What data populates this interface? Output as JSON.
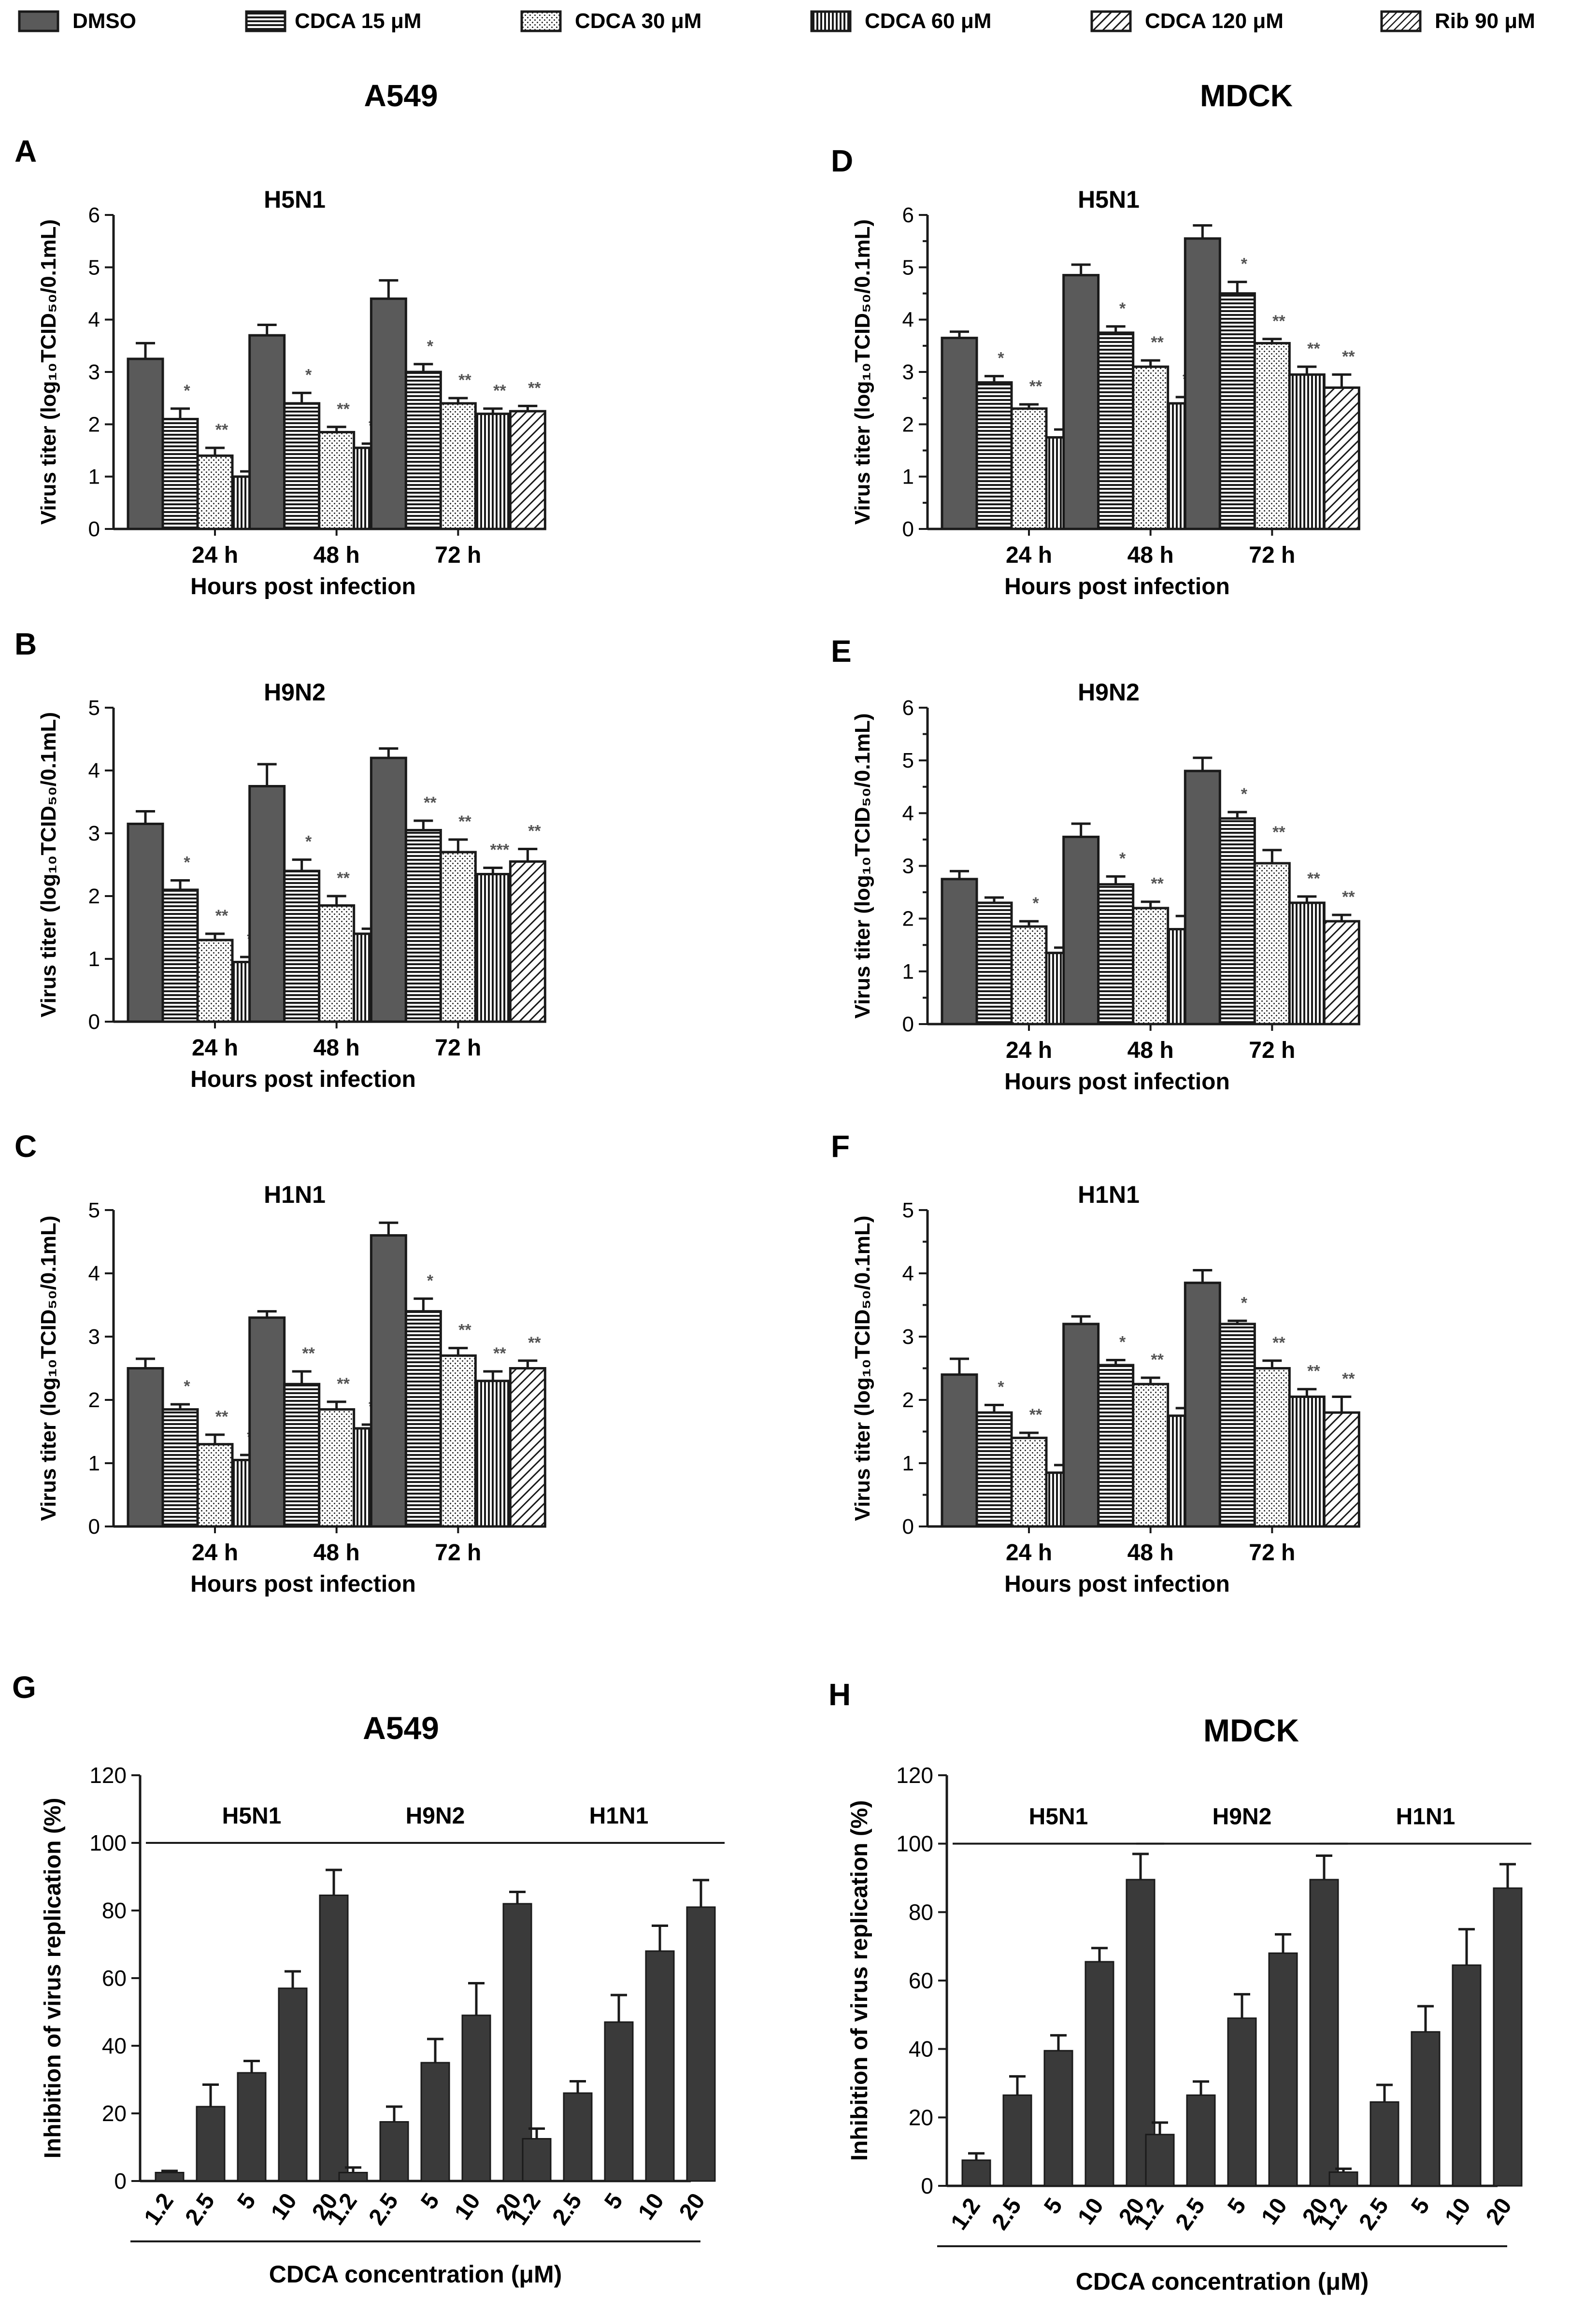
{
  "legend": [
    {
      "label": "DMSO",
      "pattern": "solid"
    },
    {
      "label": "CDCA 15 μM",
      "pattern": "hlines"
    },
    {
      "label": "CDCA 30 μM",
      "pattern": "dots"
    },
    {
      "label": "CDCA 60 μM",
      "pattern": "vlines"
    },
    {
      "label": "CDCA 120 μM",
      "pattern": "diag"
    },
    {
      "label": "Rib 90 μM",
      "pattern": "diag2"
    }
  ],
  "column_titles": {
    "left": "A549",
    "right": "MDCK"
  },
  "colors": {
    "bar": "#5a5a5a",
    "dark_bar": "#3a3a3a",
    "ink": "#1a1a1a"
  },
  "chart_data": [
    {
      "panel": "A",
      "type": "bar",
      "title": "H5N1",
      "xlabel": "Hours post infection",
      "ylabel": "Virus titer (log₁₀TCID₅₀/0.1mL)",
      "ylim": [
        0,
        6
      ],
      "yticks": [
        0,
        1,
        2,
        3,
        4,
        5,
        6
      ],
      "categories": [
        "24 h",
        "48 h",
        "72 h"
      ],
      "series": [
        {
          "values": [
            3.25,
            3.7,
            4.4
          ],
          "errors": [
            0.3,
            0.2,
            0.35
          ]
        },
        {
          "values": [
            2.1,
            2.4,
            3.0
          ],
          "errors": [
            0.2,
            0.2,
            0.15
          ]
        },
        {
          "values": [
            1.4,
            1.85,
            2.4
          ],
          "errors": [
            0.15,
            0.1,
            0.1
          ]
        },
        {
          "values": [
            1.0,
            1.55,
            2.2
          ],
          "errors": [
            0.1,
            0.08,
            0.1
          ]
        },
        {
          "values": [
            1.0,
            1.8,
            2.25
          ],
          "errors": [
            0.08,
            0.2,
            0.1
          ]
        }
      ],
      "sig": [
        [
          "*",
          "**",
          "**",
          "**"
        ],
        [
          "*",
          "**",
          "***",
          "**"
        ],
        [
          "*",
          "**",
          "**",
          "**"
        ]
      ]
    },
    {
      "panel": "B",
      "type": "bar",
      "title": "H9N2",
      "xlabel": "Hours post infection",
      "ylabel": "Virus titer (log₁₀TCID₅₀/0.1mL)",
      "ylim": [
        0,
        5
      ],
      "yticks": [
        0,
        1,
        2,
        3,
        4,
        5
      ],
      "categories": [
        "24 h",
        "48 h",
        "72 h"
      ],
      "series": [
        {
          "values": [
            3.15,
            3.75,
            4.2
          ],
          "errors": [
            0.2,
            0.35,
            0.15
          ]
        },
        {
          "values": [
            2.1,
            2.4,
            3.05
          ],
          "errors": [
            0.15,
            0.18,
            0.15
          ]
        },
        {
          "values": [
            1.3,
            1.85,
            2.7
          ],
          "errors": [
            0.1,
            0.15,
            0.2
          ]
        },
        {
          "values": [
            0.95,
            1.4,
            2.35
          ],
          "errors": [
            0.08,
            0.08,
            0.1
          ]
        },
        {
          "values": [
            1.15,
            1.6,
            2.55
          ],
          "errors": [
            0.2,
            0.1,
            0.2
          ]
        }
      ],
      "sig": [
        [
          "*",
          "**",
          "***",
          "**"
        ],
        [
          "*",
          "**",
          "**",
          "**"
        ],
        [
          "**",
          "**",
          "***",
          "**"
        ]
      ]
    },
    {
      "panel": "C",
      "type": "bar",
      "title": "H1N1",
      "xlabel": "Hours post infection",
      "ylabel": "Virus titer (log₁₀TCID₅₀/0.1mL)",
      "ylim": [
        0,
        5
      ],
      "yticks": [
        0,
        1,
        2,
        3,
        4,
        5
      ],
      "categories": [
        "24 h",
        "48 h",
        "72 h"
      ],
      "series": [
        {
          "values": [
            2.5,
            3.3,
            4.6
          ],
          "errors": [
            0.15,
            0.1,
            0.2
          ]
        },
        {
          "values": [
            1.85,
            2.25,
            3.4
          ],
          "errors": [
            0.08,
            0.2,
            0.2
          ]
        },
        {
          "values": [
            1.3,
            1.85,
            2.7
          ],
          "errors": [
            0.15,
            0.12,
            0.12
          ]
        },
        {
          "values": [
            1.05,
            1.55,
            2.3
          ],
          "errors": [
            0.08,
            0.06,
            0.15
          ]
        },
        {
          "values": [
            1.15,
            1.6,
            2.5
          ],
          "errors": [
            0.08,
            0.08,
            0.12
          ]
        }
      ],
      "sig": [
        [
          "*",
          "**",
          "***",
          "**"
        ],
        [
          "**",
          "**",
          "***",
          "***"
        ],
        [
          "*",
          "**",
          "**",
          "**"
        ]
      ]
    },
    {
      "panel": "D",
      "type": "bar",
      "title": "H5N1",
      "xlabel": "Hours post infection",
      "ylabel": "Virus titer (log₁₀TCID₅₀/0.1mL)",
      "ylim": [
        0,
        6
      ],
      "yticks": [
        0,
        0.5,
        1,
        1.5,
        2,
        2.5,
        3,
        3.5,
        4,
        4.5,
        5,
        5.5,
        6
      ],
      "ytick_labels": [
        "0",
        "",
        "1",
        "",
        "2",
        "",
        "3",
        "",
        "4",
        "",
        "5",
        "",
        "6"
      ],
      "categories": [
        "24 h",
        "48 h",
        "72 h"
      ],
      "series": [
        {
          "values": [
            3.65,
            4.85,
            5.55
          ],
          "errors": [
            0.12,
            0.2,
            0.25
          ]
        },
        {
          "values": [
            2.8,
            3.75,
            4.5
          ],
          "errors": [
            0.12,
            0.12,
            0.22
          ]
        },
        {
          "values": [
            2.3,
            3.1,
            3.55
          ],
          "errors": [
            0.08,
            0.12,
            0.08
          ]
        },
        {
          "values": [
            1.75,
            2.4,
            2.95
          ],
          "errors": [
            0.15,
            0.12,
            0.15
          ]
        },
        {
          "values": [
            1.5,
            2.25,
            2.7
          ],
          "errors": [
            0.05,
            0.12,
            0.25
          ]
        }
      ],
      "sig": [
        [
          "*",
          "**",
          "**",
          "***"
        ],
        [
          "*",
          "**",
          "***",
          "***"
        ],
        [
          "*",
          "**",
          "**",
          "**"
        ]
      ]
    },
    {
      "panel": "E",
      "type": "bar",
      "title": "H9N2",
      "xlabel": "Hours post infection",
      "ylabel": "Virus titer (log₁₀TCID₅₀/0.1mL)",
      "ylim": [
        0,
        6
      ],
      "yticks": [
        0,
        0.5,
        1,
        1.5,
        2,
        2.5,
        3,
        3.5,
        4,
        4.5,
        5,
        5.5,
        6
      ],
      "ytick_labels": [
        "0",
        "",
        "1",
        "",
        "2",
        "",
        "3",
        "",
        "4",
        "",
        "5",
        "",
        "6"
      ],
      "categories": [
        "24 h",
        "48 h",
        "72 h"
      ],
      "series": [
        {
          "values": [
            2.75,
            3.55,
            4.8
          ],
          "errors": [
            0.15,
            0.25,
            0.25
          ]
        },
        {
          "values": [
            2.3,
            2.65,
            3.9
          ],
          "errors": [
            0.1,
            0.15,
            0.12
          ]
        },
        {
          "values": [
            1.85,
            2.2,
            3.05
          ],
          "errors": [
            0.1,
            0.12,
            0.25
          ]
        },
        {
          "values": [
            1.35,
            1.8,
            2.3
          ],
          "errors": [
            0.1,
            0.25,
            0.12
          ]
        },
        {
          "values": [
            1.15,
            1.65,
            1.95
          ],
          "errors": [
            0.12,
            0.08,
            0.12
          ]
        }
      ],
      "sig": [
        [
          "",
          "*",
          "**",
          "**"
        ],
        [
          "*",
          "**",
          "**",
          "**"
        ],
        [
          "*",
          "**",
          "**",
          "**"
        ]
      ]
    },
    {
      "panel": "F",
      "type": "bar",
      "title": "H1N1",
      "xlabel": "Hours post infection",
      "ylabel": "Virus titer (log₁₀TCID₅₀/0.1mL)",
      "ylim": [
        0,
        5
      ],
      "yticks": [
        0,
        0.5,
        1,
        1.5,
        2,
        2.5,
        3,
        3.5,
        4,
        4.5,
        5
      ],
      "ytick_labels": [
        "0",
        "",
        "1",
        "",
        "2",
        "",
        "3",
        "",
        "4",
        "",
        "5"
      ],
      "categories": [
        "24 h",
        "48 h",
        "72 h"
      ],
      "series": [
        {
          "values": [
            2.4,
            3.2,
            3.85
          ],
          "errors": [
            0.25,
            0.12,
            0.2
          ]
        },
        {
          "values": [
            1.8,
            2.55,
            3.2
          ],
          "errors": [
            0.12,
            0.08,
            0.05
          ]
        },
        {
          "values": [
            1.4,
            2.25,
            2.5
          ],
          "errors": [
            0.08,
            0.1,
            0.12
          ]
        },
        {
          "values": [
            0.85,
            1.75,
            2.05
          ],
          "errors": [
            0.12,
            0.12,
            0.12
          ]
        },
        {
          "values": [
            0.75,
            1.55,
            1.8
          ],
          "errors": [
            0.05,
            0.1,
            0.25
          ]
        }
      ],
      "sig": [
        [
          "*",
          "**",
          "**",
          ""
        ],
        [
          "*",
          "**",
          "**",
          "***"
        ],
        [
          "*",
          "**",
          "**",
          "**"
        ]
      ]
    },
    {
      "panel": "G",
      "type": "bar",
      "title": "A549",
      "xlabel": "CDCA concentration (μM)",
      "ylabel": "Inhibition of virus replication (%)",
      "ylim": [
        0,
        120
      ],
      "yticks": [
        0,
        20,
        40,
        60,
        80,
        100,
        120
      ],
      "tick_labels": [
        "1.2",
        "2.5",
        "5",
        "10",
        "20"
      ],
      "groups": [
        {
          "name": "H5N1",
          "values": [
            2.5,
            22,
            32,
            57,
            84.5
          ],
          "errors": [
            0.5,
            6.5,
            3.5,
            5,
            7.5
          ]
        },
        {
          "name": "H9N2",
          "values": [
            2.5,
            17.5,
            35,
            49,
            82
          ],
          "errors": [
            1.5,
            4.5,
            7,
            9.5,
            3.5
          ]
        },
        {
          "name": "H1N1",
          "values": [
            12.5,
            26,
            47,
            68,
            81
          ],
          "errors": [
            3,
            3.5,
            8,
            7.5,
            8
          ]
        }
      ]
    },
    {
      "panel": "H",
      "type": "bar",
      "title": "MDCK",
      "xlabel": "CDCA concentration (μM)",
      "ylabel": "Inhibition of virus replication (%)",
      "ylim": [
        0,
        120
      ],
      "yticks": [
        0,
        20,
        40,
        60,
        80,
        100,
        120
      ],
      "tick_labels": [
        "1.2",
        "2.5",
        "5",
        "10",
        "20"
      ],
      "groups": [
        {
          "name": "H5N1",
          "values": [
            7.5,
            26.5,
            39.5,
            65.5,
            89.5
          ],
          "errors": [
            2,
            5.5,
            4.5,
            4,
            7.5
          ]
        },
        {
          "name": "H9N2",
          "values": [
            15,
            26.5,
            49,
            68,
            89.5
          ],
          "errors": [
            3.5,
            4,
            7,
            5.5,
            7
          ]
        },
        {
          "name": "H1N1",
          "values": [
            4,
            24.5,
            45,
            64.5,
            87
          ],
          "errors": [
            1,
            5,
            7.5,
            10.5,
            7
          ]
        }
      ]
    }
  ]
}
